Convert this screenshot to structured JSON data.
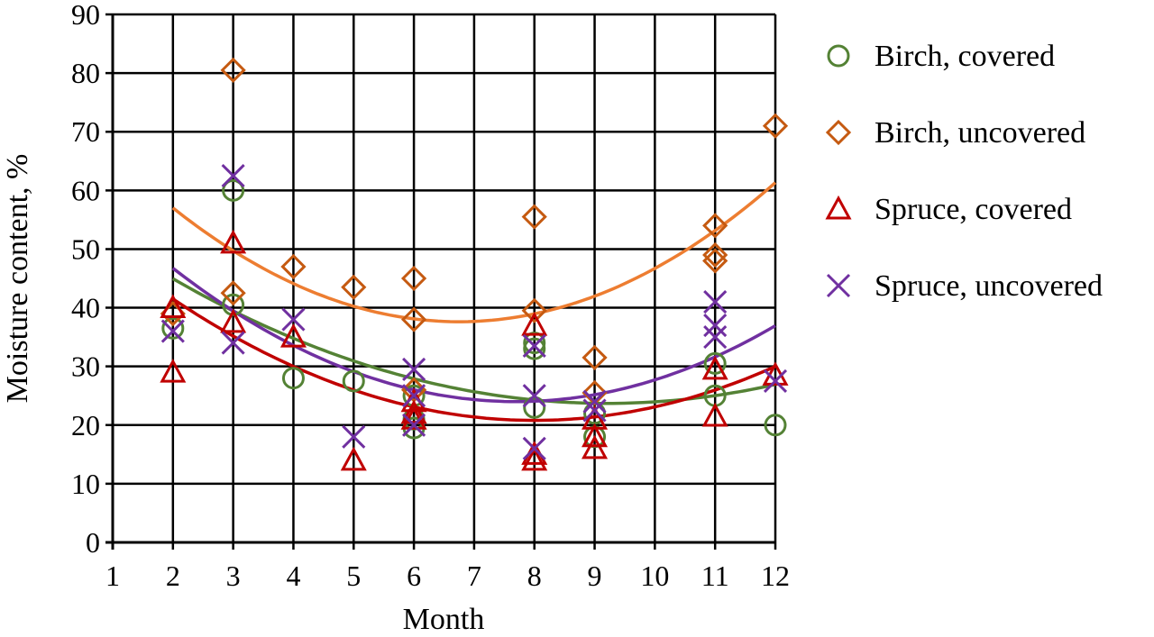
{
  "chart_data": {
    "type": "scatter",
    "xlabel": "Month",
    "ylabel": "Moisture content, %",
    "xlim": [
      1,
      12
    ],
    "ylim": [
      0,
      90
    ],
    "xticks": [
      1,
      2,
      3,
      4,
      5,
      6,
      7,
      8,
      9,
      10,
      11,
      12
    ],
    "yticks": [
      0,
      10,
      20,
      30,
      40,
      50,
      60,
      70,
      80,
      90
    ],
    "grid": true,
    "legend_position": "right",
    "series": [
      {
        "name": "Birch, covered",
        "marker": "circle",
        "color": "#548235",
        "trend_color": "#548235",
        "trendline": {
          "type": "polynomial",
          "order": 2,
          "coefficients": [
            0.41,
            -7.544,
            58.4
          ]
        },
        "points": [
          [
            2,
            36.5
          ],
          [
            3,
            60
          ],
          [
            3,
            40.5
          ],
          [
            4,
            28
          ],
          [
            5,
            27.5
          ],
          [
            6,
            25
          ],
          [
            6,
            21
          ],
          [
            6,
            19.5
          ],
          [
            8,
            34
          ],
          [
            8,
            33
          ],
          [
            8,
            23
          ],
          [
            9,
            22
          ],
          [
            9,
            18
          ],
          [
            11,
            30.5
          ],
          [
            11,
            25
          ],
          [
            12,
            20
          ]
        ]
      },
      {
        "name": "Birch, uncovered",
        "marker": "diamond",
        "color": "#C55A11",
        "trend_color": "#ED7D31",
        "trendline": {
          "type": "polynomial",
          "order": 2,
          "coefficients": [
            0.86,
            -11.61,
            76.8
          ]
        },
        "points": [
          [
            2,
            39
          ],
          [
            3,
            80.5
          ],
          [
            3,
            42.5
          ],
          [
            4,
            47
          ],
          [
            5,
            43.5
          ],
          [
            6,
            45
          ],
          [
            6,
            38
          ],
          [
            6,
            26
          ],
          [
            8,
            55.5
          ],
          [
            8,
            39.5
          ],
          [
            9,
            31.5
          ],
          [
            9,
            25.5
          ],
          [
            11,
            54
          ],
          [
            11,
            49
          ],
          [
            11,
            48
          ],
          [
            12,
            71
          ]
        ]
      },
      {
        "name": "Spruce, covered",
        "marker": "triangle",
        "color": "#C00000",
        "trend_color": "#C00000",
        "trendline": {
          "type": "polynomial",
          "order": 2,
          "coefficients": [
            0.575,
            -9.2,
            57.6
          ]
        },
        "points": [
          [
            2,
            40
          ],
          [
            2,
            29
          ],
          [
            3,
            51
          ],
          [
            3,
            37.5
          ],
          [
            4,
            35
          ],
          [
            5,
            14
          ],
          [
            6,
            24
          ],
          [
            6,
            22
          ],
          [
            6,
            21
          ],
          [
            8,
            37
          ],
          [
            8,
            15
          ],
          [
            8,
            14
          ],
          [
            9,
            21
          ],
          [
            9,
            18
          ],
          [
            9,
            16
          ],
          [
            11,
            29.5
          ],
          [
            11,
            21.5
          ],
          [
            12,
            28.5
          ]
        ]
      },
      {
        "name": "Spruce, uncovered",
        "marker": "x",
        "color": "#7030A0",
        "trend_color": "#7030A0",
        "trendline": {
          "type": "polynomial",
          "order": 2,
          "coefficients": [
            0.7,
            -10.78,
            65.5
          ]
        },
        "points": [
          [
            2,
            36
          ],
          [
            3,
            62.5
          ],
          [
            3,
            34
          ],
          [
            4,
            38
          ],
          [
            5,
            18
          ],
          [
            6,
            29.5
          ],
          [
            6,
            25
          ],
          [
            6,
            20
          ],
          [
            8,
            33.5
          ],
          [
            8,
            25
          ],
          [
            8,
            16
          ],
          [
            9,
            24
          ],
          [
            9,
            22.5
          ],
          [
            11,
            41
          ],
          [
            11,
            37
          ],
          [
            11,
            35
          ],
          [
            12,
            27.5
          ]
        ]
      }
    ]
  }
}
